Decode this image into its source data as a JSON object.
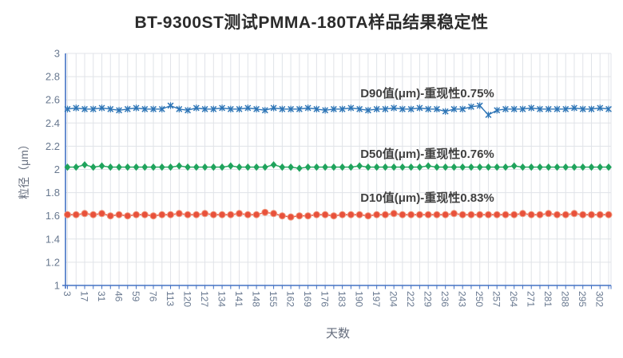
{
  "chart_data": {
    "type": "line",
    "title": "BT-9300ST测试PMMA-180TA样品结果稳定性",
    "xlabel": "天数",
    "ylabel": "粒径（μm）",
    "ylim": [
      1,
      3
    ],
    "ytick_step": 0.2,
    "ytick_labels": [
      "3",
      "2.8",
      "2.6",
      "2.4",
      "2.2",
      "2",
      "1.8",
      "1.6",
      "1.4",
      "1.2",
      "1"
    ],
    "x_tick_labels": [
      "3",
      "17",
      "31",
      "46",
      "59",
      "76",
      "113",
      "120",
      "127",
      "134",
      "141",
      "148",
      "155",
      "162",
      "169",
      "176",
      "183",
      "190",
      "197",
      "204",
      "222",
      "229",
      "236",
      "243",
      "250",
      "257",
      "264",
      "271",
      "281",
      "288",
      "295",
      "302"
    ],
    "points_per_label": 2,
    "grid": true,
    "legend_position": "none",
    "colors": {
      "axis": "#4472c4",
      "grid": "#e0e3e8",
      "tick_label": "#68788f",
      "axis_title": "#646c7c",
      "title": "#2b2b2b",
      "annotation": "#404040"
    },
    "series": [
      {
        "name": "D90值(μm)",
        "annotation": "D90值(μm)-重现性0.75%",
        "reproducibility": "0.75%",
        "color": "#2e75b6",
        "marker": "star",
        "values": [
          2.52,
          2.53,
          2.52,
          2.52,
          2.53,
          2.52,
          2.51,
          2.52,
          2.53,
          2.52,
          2.52,
          2.52,
          2.55,
          2.52,
          2.51,
          2.53,
          2.52,
          2.52,
          2.53,
          2.52,
          2.52,
          2.53,
          2.52,
          2.51,
          2.53,
          2.52,
          2.52,
          2.52,
          2.53,
          2.52,
          2.51,
          2.52,
          2.52,
          2.53,
          2.52,
          2.51,
          2.52,
          2.52,
          2.53,
          2.52,
          2.52,
          2.53,
          2.52,
          2.52,
          2.5,
          2.52,
          2.52,
          2.54,
          2.55,
          2.47,
          2.51,
          2.52,
          2.52,
          2.52,
          2.53,
          2.52,
          2.52,
          2.52,
          2.52,
          2.53,
          2.52,
          2.52,
          2.53,
          2.52
        ]
      },
      {
        "name": "D50值(μm)",
        "annotation": "D50值(μm)-重现性0.76%",
        "reproducibility": "0.76%",
        "color": "#1fa35c",
        "marker": "diamond",
        "values": [
          2.02,
          2.02,
          2.04,
          2.02,
          2.03,
          2.02,
          2.02,
          2.02,
          2.02,
          2.02,
          2.02,
          2.02,
          2.02,
          2.03,
          2.02,
          2.02,
          2.02,
          2.02,
          2.02,
          2.03,
          2.02,
          2.02,
          2.02,
          2.02,
          2.04,
          2.02,
          2.02,
          2.01,
          2.02,
          2.02,
          2.02,
          2.02,
          2.02,
          2.02,
          2.03,
          2.02,
          2.02,
          2.02,
          2.02,
          2.02,
          2.02,
          2.02,
          2.03,
          2.02,
          2.02,
          2.02,
          2.02,
          2.02,
          2.02,
          2.02,
          2.02,
          2.02,
          2.03,
          2.02,
          2.02,
          2.02,
          2.02,
          2.02,
          2.02,
          2.02,
          2.02,
          2.02,
          2.02,
          2.02
        ]
      },
      {
        "name": "D10值(μm)",
        "annotation": "D10值(μm)-重现性0.83%",
        "reproducibility": "0.83%",
        "color": "#e8513b",
        "marker": "circle",
        "values": [
          1.61,
          1.61,
          1.62,
          1.61,
          1.62,
          1.6,
          1.61,
          1.6,
          1.61,
          1.61,
          1.6,
          1.61,
          1.61,
          1.62,
          1.61,
          1.61,
          1.62,
          1.61,
          1.61,
          1.61,
          1.62,
          1.61,
          1.61,
          1.63,
          1.62,
          1.6,
          1.59,
          1.6,
          1.6,
          1.61,
          1.61,
          1.6,
          1.61,
          1.61,
          1.61,
          1.6,
          1.61,
          1.61,
          1.62,
          1.61,
          1.61,
          1.61,
          1.61,
          1.61,
          1.61,
          1.62,
          1.61,
          1.61,
          1.61,
          1.61,
          1.61,
          1.61,
          1.61,
          1.62,
          1.61,
          1.61,
          1.62,
          1.61,
          1.61,
          1.62,
          1.61,
          1.61,
          1.61,
          1.61
        ]
      }
    ]
  }
}
